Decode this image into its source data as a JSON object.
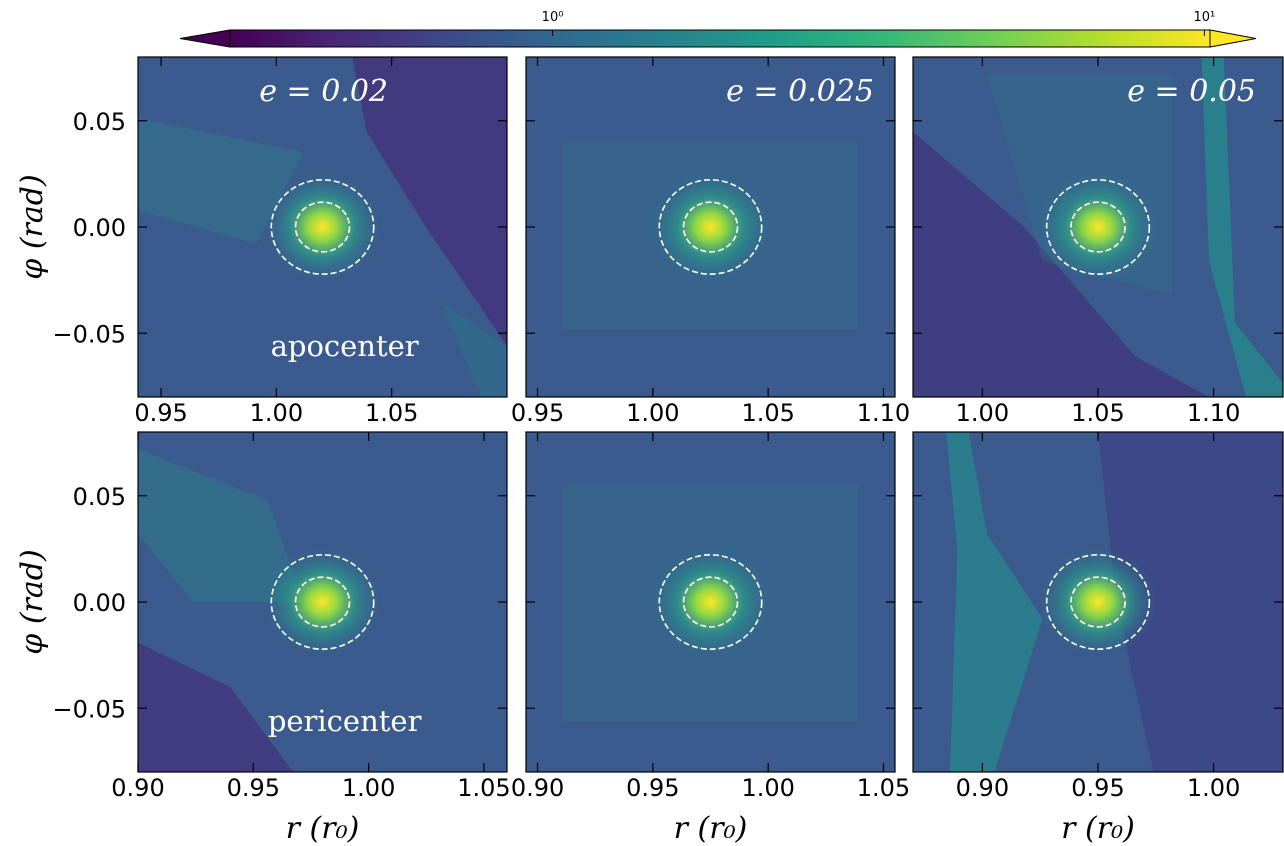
{
  "colorbar": {
    "log": true,
    "lim": [
      0.32,
      10.2
    ],
    "ticks": [
      {
        "value": 1,
        "label": "10⁰"
      },
      {
        "value": 10,
        "label": "10¹"
      }
    ],
    "colors": [
      "#440154",
      "#482878",
      "#3e4989",
      "#31688e",
      "#26828e",
      "#1f9e89",
      "#35b779",
      "#6ece58",
      "#b5de2b",
      "#fde725"
    ]
  },
  "chart_data": [
    {
      "type": "heatmap",
      "annotation": "e = 0.02",
      "label": "apocenter",
      "ylabel": "φ (rad)",
      "xlim": [
        0.94,
        1.1
      ],
      "ylim": [
        -0.08,
        0.08
      ],
      "xticks": [
        0.95,
        {
          "value": 1,
          "label": "1.00"
        },
        1.05
      ],
      "yticks": [
        {
          "value": -0.05,
          "label": "−0.05"
        },
        {
          "value": 0,
          "label": "0.00"
        },
        0.05
      ],
      "planet": [
        1.02,
        0
      ],
      "circle_radii": [
        0.0117,
        0.0222
      ]
    },
    {
      "type": "heatmap",
      "annotation": "e = 0.025",
      "xlim": [
        0.945,
        1.105
      ],
      "ylim": [
        -0.08,
        0.08
      ],
      "xticks": [
        0.95,
        {
          "value": 1,
          "label": "1.00"
        },
        1.05,
        {
          "value": 1.1,
          "label": "1.10"
        }
      ],
      "yticks": [
        {
          "value": -0.05,
          "label": "−0.05"
        },
        {
          "value": 0,
          "label": "0.00"
        },
        0.05
      ],
      "planet": [
        1.025,
        0
      ],
      "circle_radii": [
        0.0117,
        0.0222
      ]
    },
    {
      "type": "heatmap",
      "annotation": "e = 0.05",
      "xlim": [
        0.97,
        1.13
      ],
      "ylim": [
        -0.08,
        0.08
      ],
      "xticks": [
        {
          "value": 1,
          "label": "1.00"
        },
        1.05,
        {
          "value": 1.1,
          "label": "1.10"
        }
      ],
      "yticks": [
        {
          "value": -0.05,
          "label": "−0.05"
        },
        {
          "value": 0,
          "label": "0.00"
        },
        0.05
      ],
      "planet": [
        1.05,
        0
      ],
      "circle_radii": [
        0.0117,
        0.0222
      ]
    },
    {
      "type": "heatmap",
      "label": "pericenter",
      "ylabel": "φ (rad)",
      "xlabel": "r (r₀)",
      "xlim": [
        0.9,
        1.06
      ],
      "ylim": [
        -0.08,
        0.08
      ],
      "xticks": [
        {
          "value": 0.9,
          "label": "0.90"
        },
        0.95,
        {
          "value": 1,
          "label": "1.00"
        },
        1.05
      ],
      "yticks": [
        {
          "value": -0.05,
          "label": "−0.05"
        },
        {
          "value": 0,
          "label": "0.00"
        },
        0.05
      ],
      "planet": [
        0.98,
        0
      ],
      "circle_radii": [
        0.0117,
        0.0222
      ]
    },
    {
      "type": "heatmap",
      "xlabel": "r (r₀)",
      "xlim": [
        0.895,
        1.055
      ],
      "ylim": [
        -0.08,
        0.08
      ],
      "xticks": [
        {
          "value": 0.9,
          "label": "0.90"
        },
        0.95,
        {
          "value": 1,
          "label": "1.00"
        },
        1.05
      ],
      "yticks": [
        {
          "value": -0.05,
          "label": "−0.05"
        },
        {
          "value": 0,
          "label": "0.00"
        },
        0.05
      ],
      "planet": [
        0.975,
        0
      ],
      "circle_radii": [
        0.0117,
        0.0222
      ]
    },
    {
      "type": "heatmap",
      "xlabel": "r (r₀)",
      "xlim": [
        0.87,
        1.03
      ],
      "ylim": [
        -0.08,
        0.08
      ],
      "xticks": [
        {
          "value": 0.9,
          "label": "0.90"
        },
        0.95,
        {
          "value": 1,
          "label": "1.00"
        }
      ],
      "yticks": [
        {
          "value": -0.05,
          "label": "−0.05"
        },
        {
          "value": 0,
          "label": "0.00"
        },
        0.05
      ],
      "planet": [
        0.95,
        0
      ],
      "circle_radii": [
        0.0117,
        0.0222
      ]
    }
  ]
}
